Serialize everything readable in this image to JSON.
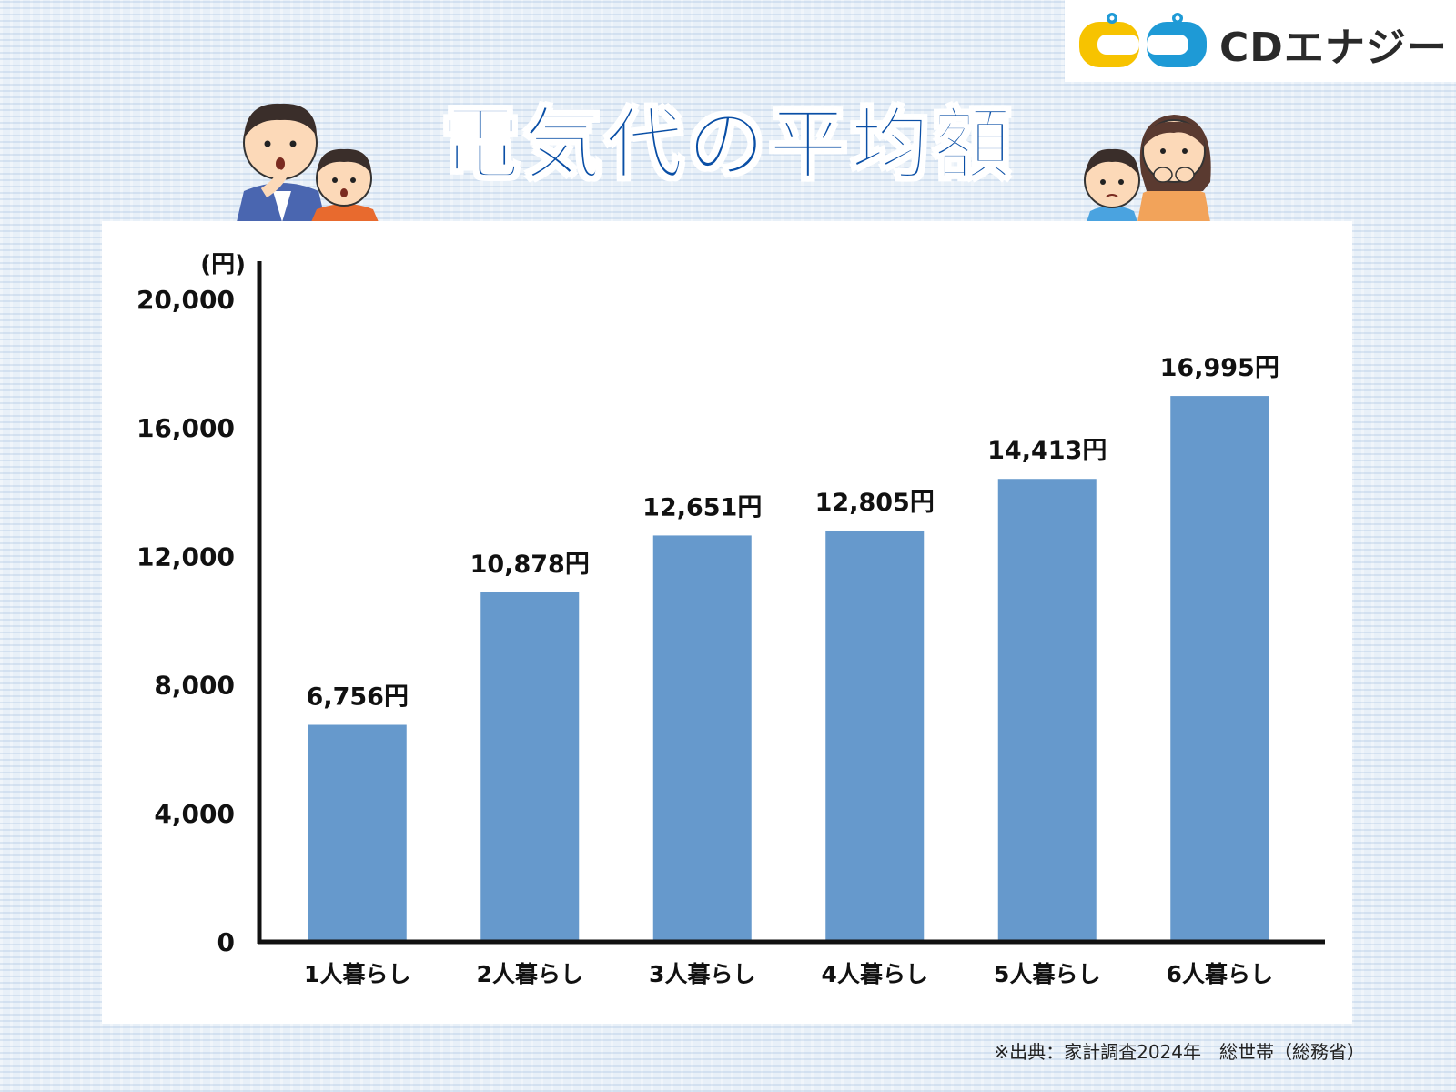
{
  "brand": {
    "name": "CDエナジー",
    "mark_colors": [
      "#f7c300",
      "#1e9ad6"
    ]
  },
  "title": "電気代の平均額",
  "source": "※出典：家計調査2024年　総世帯（総務省）",
  "colors": {
    "title": "#0a4fa6",
    "bar": "#6699cc",
    "axis": "#111111"
  },
  "chart_data": {
    "type": "bar",
    "categories": [
      "1人暮らし",
      "2人暮らし",
      "3人暮らし",
      "4人暮らし",
      "5人暮らし",
      "6人暮らし"
    ],
    "values": [
      6756,
      10878,
      12651,
      12805,
      14413,
      16995
    ],
    "value_labels": [
      "6,756円",
      "10,878円",
      "12,651円",
      "12,805円",
      "14,413円",
      "16,995円"
    ],
    "title": "電気代の平均額",
    "ylabel": "(円)",
    "xlabel": "",
    "ylim": [
      0,
      20000
    ],
    "yticks": [
      "0",
      "4,000",
      "8,000",
      "12,000",
      "16,000",
      "20,000"
    ],
    "ytick_values": [
      0,
      4000,
      8000,
      12000,
      16000,
      20000
    ],
    "grid": false,
    "legend": "none"
  }
}
